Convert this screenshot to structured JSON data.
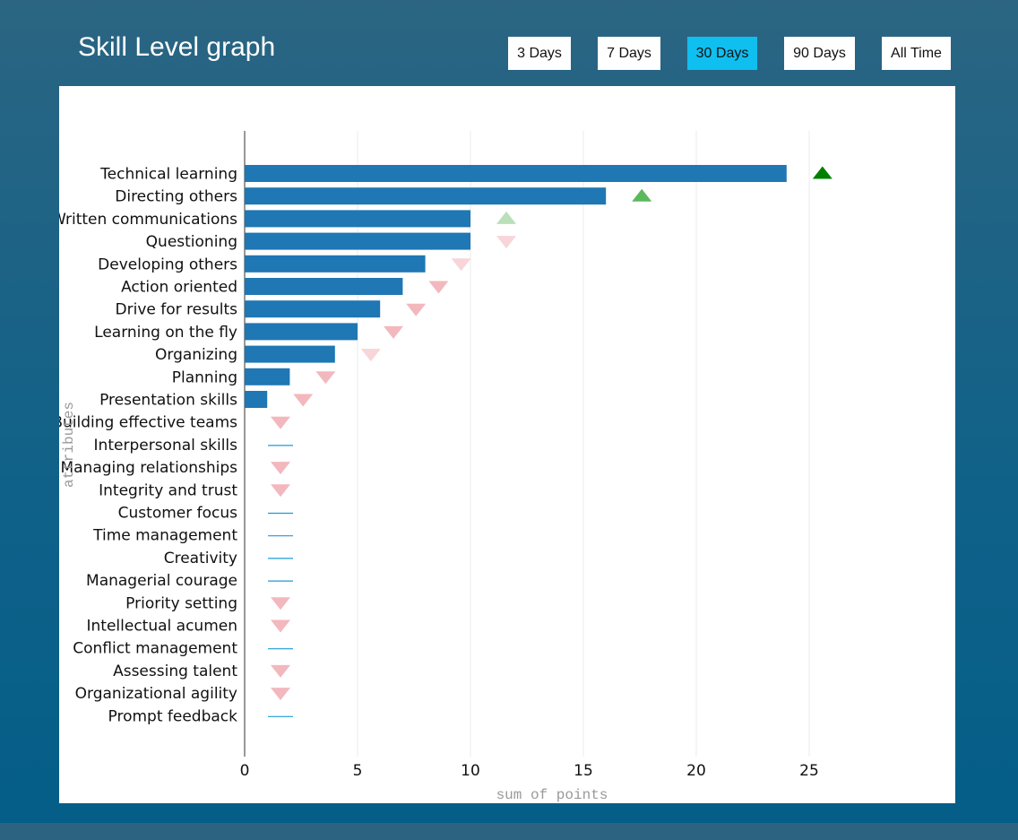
{
  "header": {
    "title": "Skill Level graph"
  },
  "range_buttons": [
    {
      "label": "3 Days",
      "active": false
    },
    {
      "label": "7 Days",
      "active": false
    },
    {
      "label": "30 Days",
      "active": true
    },
    {
      "label": "90 Days",
      "active": false
    },
    {
      "label": "All Time",
      "active": false
    }
  ],
  "colors": {
    "bar": "#1f77b4",
    "active_button": "#0fbfef",
    "up_strong": "#008000",
    "up_medium": "#5cb85c",
    "up_light": "#b9e0b9",
    "down": "#f2b8bd",
    "down_light": "#f7d5d8",
    "flat": "#1f9bd6"
  },
  "chart_data": {
    "type": "bar",
    "orientation": "horizontal",
    "xlabel": "sum of points",
    "ylabel": "attributes",
    "xlim": [
      0,
      30
    ],
    "xticks": [
      0,
      5,
      10,
      15,
      20,
      25
    ],
    "grid": true,
    "categories": [
      "Technical learning",
      "Directing others",
      "Written communications",
      "Questioning",
      "Developing others",
      "Action oriented",
      "Drive for results",
      "Learning on the fly",
      "Organizing",
      "Planning",
      "Presentation skills",
      "Building effective teams",
      "Interpersonal skills",
      "Managing relationships",
      "Integrity and trust",
      "Customer focus",
      "Time management",
      "Creativity",
      "Managerial courage",
      "Priority setting",
      "Intellectual acumen",
      "Conflict management",
      "Assessing talent",
      "Organizational agility",
      "Prompt feedback"
    ],
    "values": [
      24,
      16,
      10,
      10,
      8,
      7,
      6,
      5,
      4,
      2,
      1,
      0,
      0,
      0,
      0,
      0,
      0,
      0,
      0,
      0,
      0,
      0,
      0,
      0,
      0
    ],
    "trend": [
      "up-strong",
      "up-medium",
      "up-light",
      "down-light",
      "down-light",
      "down",
      "down",
      "down",
      "down-light",
      "down",
      "down",
      "down",
      "flat",
      "down",
      "down",
      "flat",
      "flat",
      "flat",
      "flat",
      "down",
      "down",
      "flat",
      "down",
      "down",
      "flat"
    ]
  }
}
